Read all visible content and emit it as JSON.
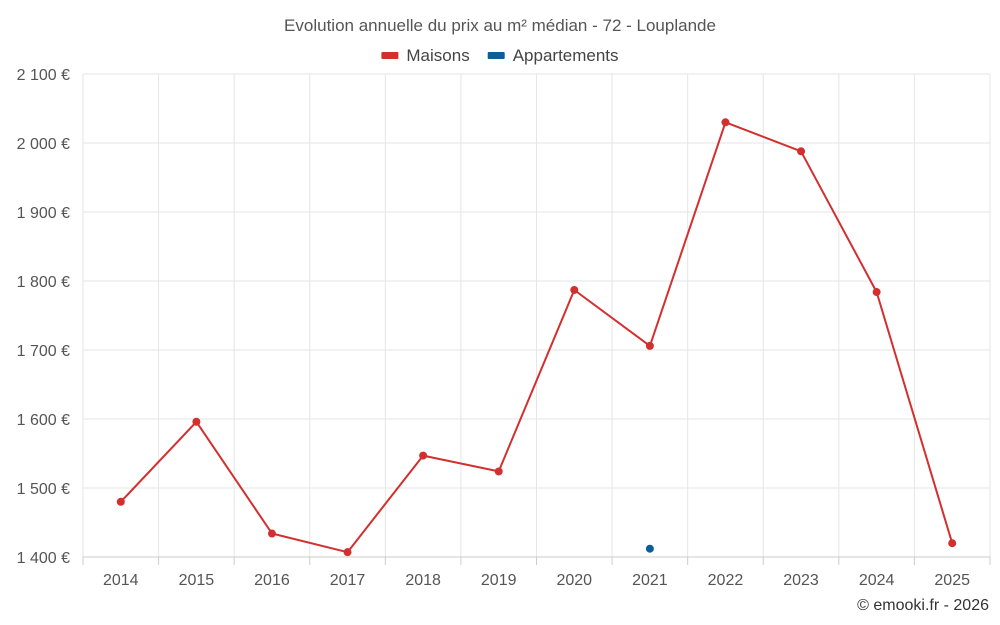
{
  "chart_data": {
    "type": "line",
    "title": "Evolution annuelle du prix au m² médian - 72 - Louplande",
    "xlabel": "",
    "ylabel": "",
    "categories": [
      "2014",
      "2015",
      "2016",
      "2017",
      "2018",
      "2019",
      "2020",
      "2021",
      "2022",
      "2023",
      "2024",
      "2025"
    ],
    "ylim": [
      1400,
      2100
    ],
    "yticks": [
      1400,
      1500,
      1600,
      1700,
      1800,
      1900,
      2000,
      2100
    ],
    "ytick_labels": [
      "1 400 €",
      "1 500 €",
      "1 600 €",
      "1 700 €",
      "1 800 €",
      "1 900 €",
      "2 000 €",
      "2 100 €"
    ],
    "grid": true,
    "legend_position": "top-center",
    "series": [
      {
        "name": "Maisons",
        "color": "#d32f2f",
        "values": [
          1480,
          1596,
          1434,
          1407,
          1547,
          1524,
          1787,
          1706,
          2030,
          1988,
          1784,
          1420
        ]
      },
      {
        "name": "Appartements",
        "color": "#0b5e9c",
        "values": [
          null,
          null,
          null,
          null,
          null,
          null,
          null,
          1412,
          null,
          null,
          null,
          null
        ]
      }
    ],
    "credit": "© emooki.fr - 2026"
  }
}
